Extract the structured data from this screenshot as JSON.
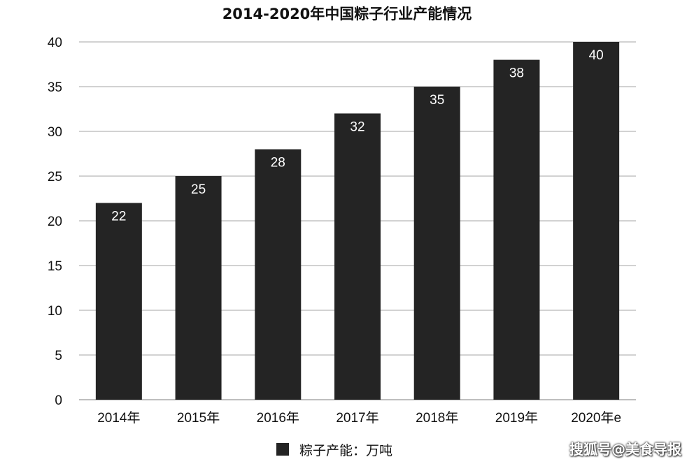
{
  "chart_data": {
    "type": "bar",
    "title": "2014-2020年中国粽子行业产能情况",
    "categories": [
      "2014年",
      "2015年",
      "2016年",
      "2017年",
      "2018年",
      "2019年",
      "2020年e"
    ],
    "series": [
      {
        "name": "粽子产能：万吨",
        "values": [
          22,
          25,
          28,
          32,
          35,
          38,
          40
        ]
      }
    ],
    "ylim": [
      0,
      40
    ],
    "yticks": [
      0,
      5,
      10,
      15,
      20,
      25,
      30,
      35,
      40
    ],
    "grid": true,
    "legend": "bottom",
    "data_labels": true,
    "colors": {
      "bar": "#242424",
      "grid": "#c4c4c4",
      "label": "#ffffff"
    }
  },
  "watermark": "搜狐号@美食导报"
}
